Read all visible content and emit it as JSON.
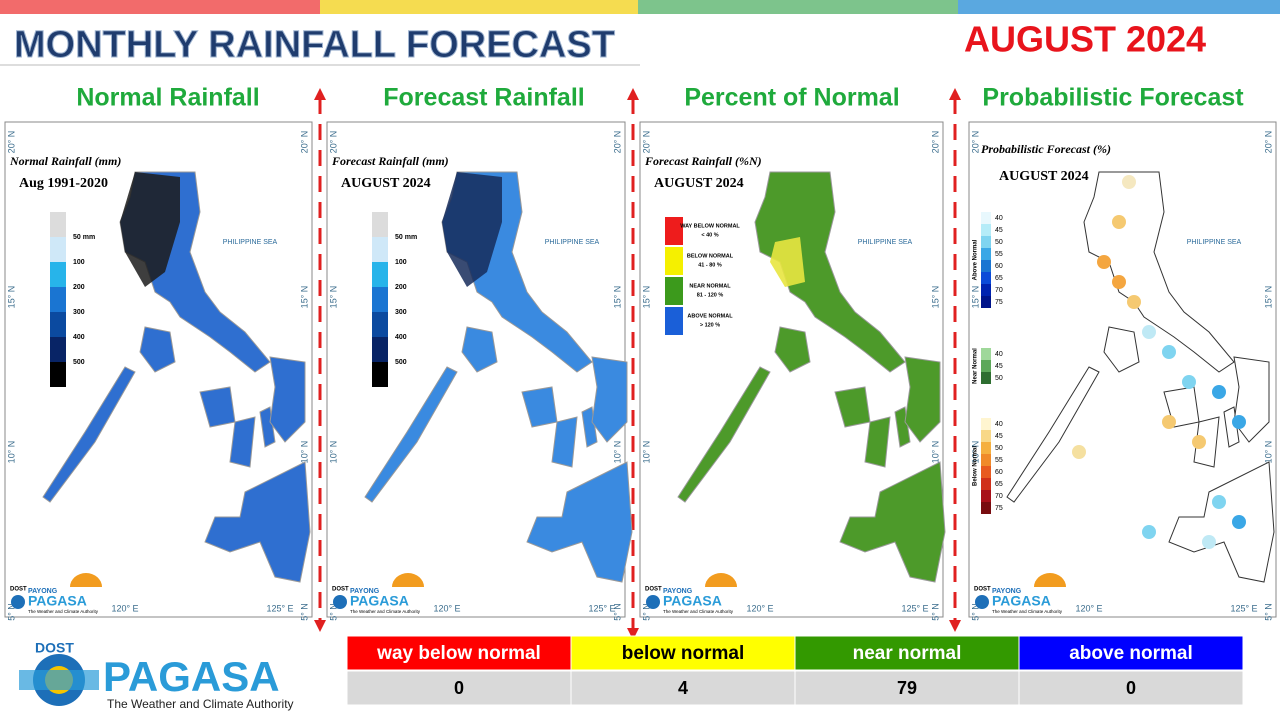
{
  "header": {
    "title": "MONTHLY RAINFALL FORECAST",
    "month": "AUGUST 2024"
  },
  "panels": [
    {
      "heading": "Normal Rainfall",
      "map_title": "Normal Rainfall (mm)",
      "map_subtitle": "Aug 1991-2020",
      "legend": [
        "50 mm",
        "100",
        "200",
        "300",
        "400",
        "500"
      ]
    },
    {
      "heading": "Forecast Rainfall",
      "map_title": "Forecast Rainfall (mm)",
      "map_subtitle": "AUGUST 2024",
      "legend": [
        "50 mm",
        "100",
        "200",
        "300",
        "400",
        "500"
      ]
    },
    {
      "heading": "Percent of Normal",
      "map_title": "Forecast Rainfall (%N)",
      "map_subtitle": "AUGUST 2024",
      "legend": [
        {
          "label": "WAY BELOW NORMAL",
          "range": "< 40 %"
        },
        {
          "label": "BELOW NORMAL",
          "range": "41 - 80 %"
        },
        {
          "label": "NEAR NORMAL",
          "range": "81 - 120 %"
        },
        {
          "label": "ABOVE NORMAL",
          "range": "> 120 %"
        }
      ]
    },
    {
      "heading": "Probabilistic Forecast",
      "map_title": "Probabilistic Forecast (%)",
      "map_subtitle": "AUGUST 2024",
      "legend": [
        {
          "group": "Above Normal",
          "levels": [
            40,
            45,
            50,
            55,
            60,
            65,
            70,
            75
          ]
        },
        {
          "group": "Near Normal",
          "levels": [
            40,
            45,
            50
          ]
        },
        {
          "group": "Below Normal",
          "levels": [
            40,
            45,
            50,
            55,
            60,
            65,
            70,
            75
          ]
        }
      ]
    }
  ],
  "map_labels": {
    "lat": [
      "20° N",
      "15° N",
      "10° N",
      "5° N"
    ],
    "lon": [
      "120° E",
      "125° E"
    ],
    "sea": "PHILIPPINE SEA",
    "logo": {
      "agency": "DOST",
      "brand_top": "PAYONG",
      "brand": "PAGASA",
      "tagline": "The Weather and Climate Authority"
    }
  },
  "summary": {
    "headers": [
      "way below normal",
      "below normal",
      "near normal",
      "above normal"
    ],
    "counts": [
      0,
      4,
      79,
      0
    ]
  },
  "footer_logo": {
    "agency": "DOST",
    "name": "PAGASA",
    "tagline": "The Weather and Climate Authority"
  }
}
